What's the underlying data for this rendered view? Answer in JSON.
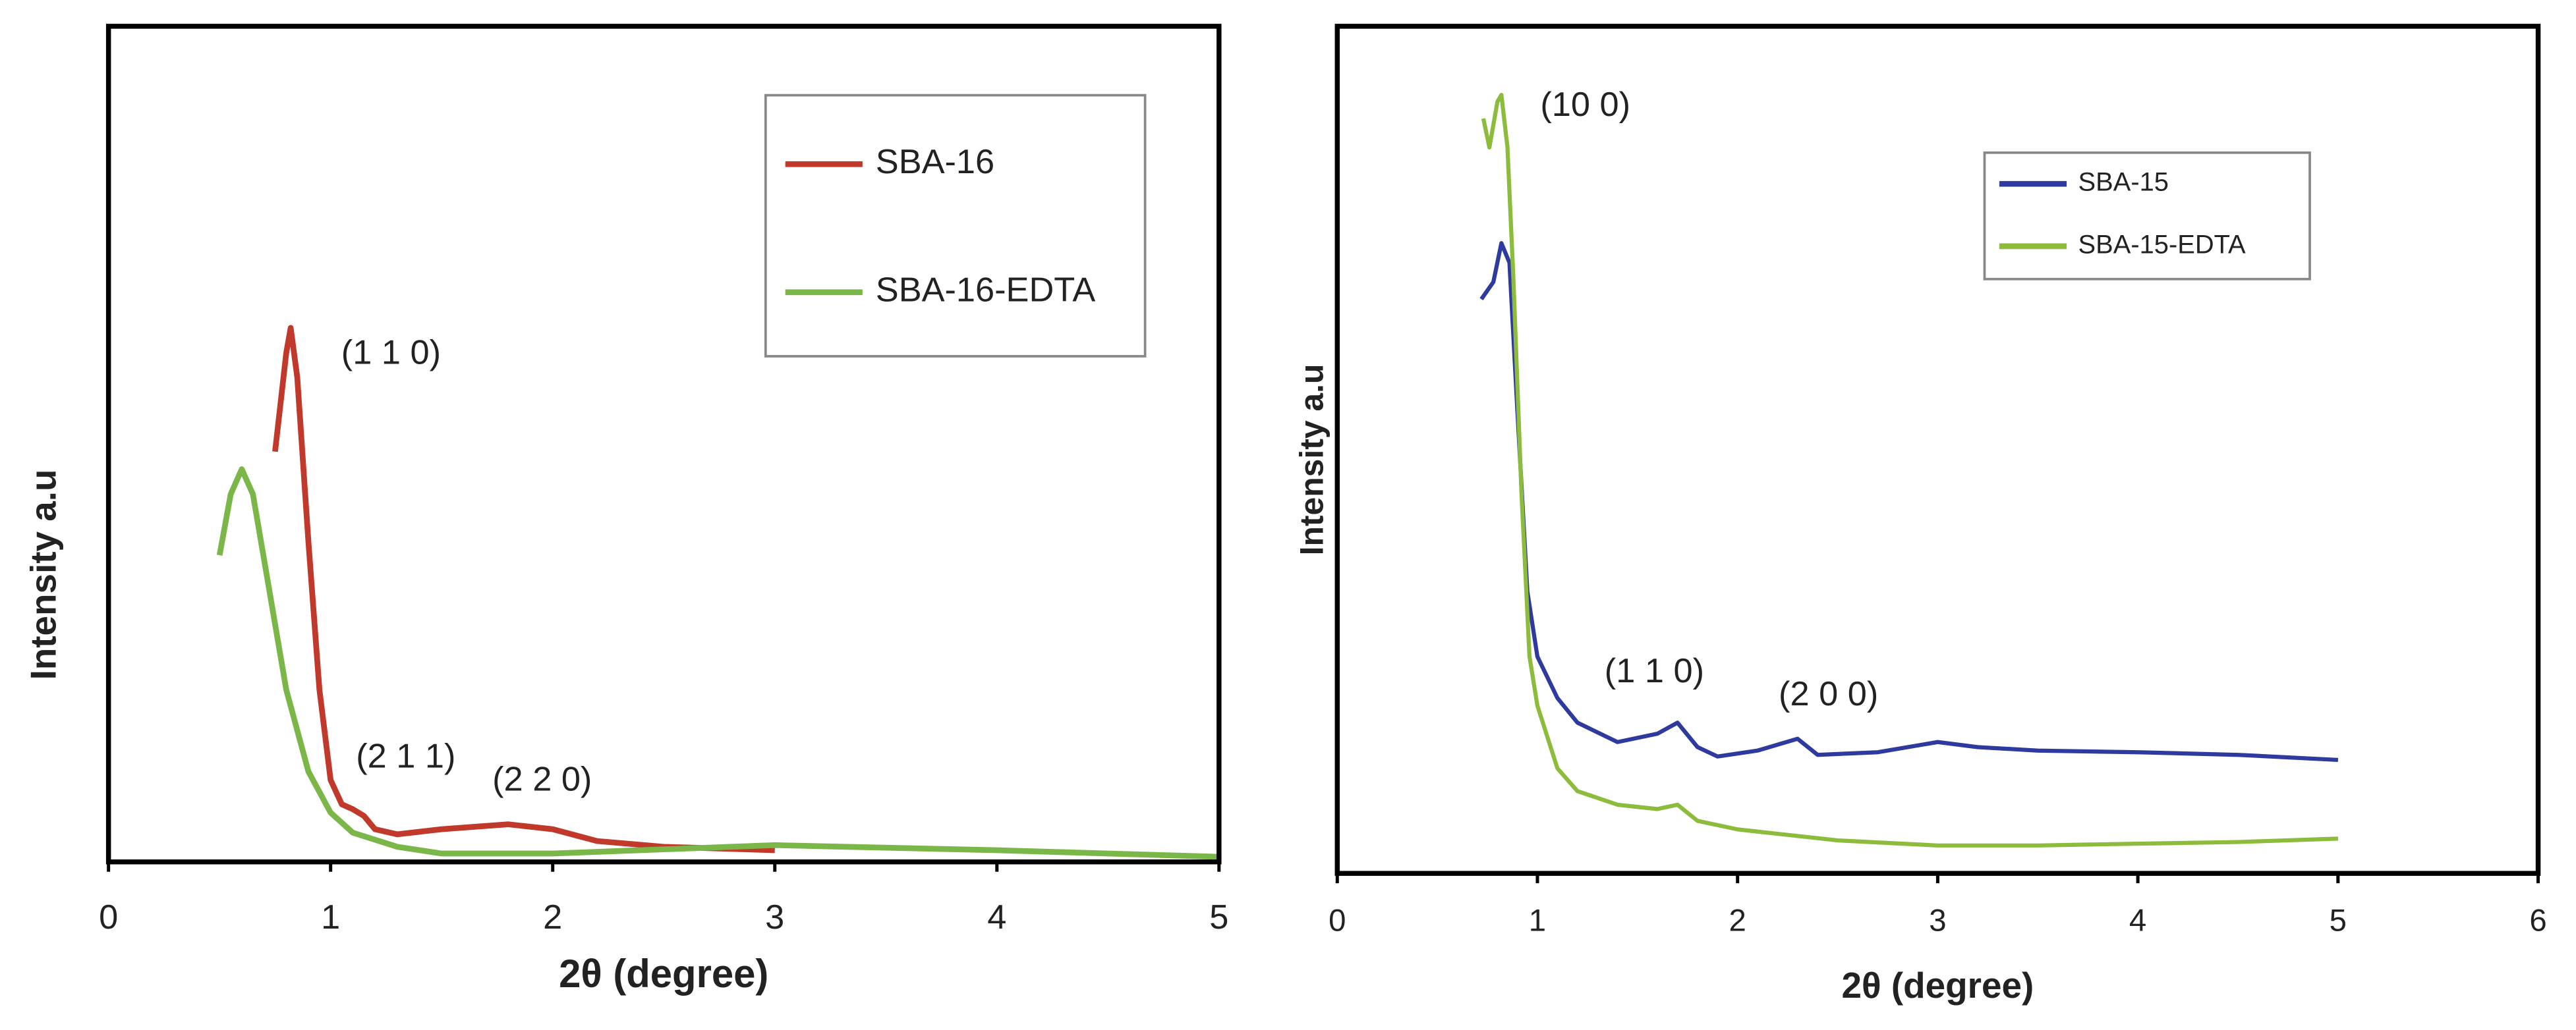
{
  "chart_data": [
    {
      "type": "line",
      "xlabel": "2θ (degree)",
      "ylabel": "Intensity a.u",
      "xlim": [
        0,
        5
      ],
      "xticks": [
        0,
        1,
        2,
        3,
        4,
        5
      ],
      "ylim": [
        0,
        100
      ],
      "legend": "upper right",
      "annotations": [
        "(1 1 0)",
        "(2 1 1)",
        "(2 2 0)"
      ],
      "series": [
        {
          "name": "SBA-16",
          "color": "#c0392b",
          "x": [
            0.75,
            0.8,
            0.82,
            0.85,
            0.9,
            0.95,
            1.0,
            1.05,
            1.1,
            1.15,
            1.2,
            1.3,
            1.5,
            1.8,
            2.0,
            2.2,
            2.5,
            3.0
          ],
          "values": [
            49.1,
            60.9,
            63.9,
            58.0,
            38.3,
            20.6,
            9.8,
            6.9,
            6.3,
            5.5,
            3.9,
            3.3,
            3.9,
            4.5,
            3.9,
            2.5,
            1.8,
            1.4
          ]
        },
        {
          "name": "SBA-16-EDTA",
          "color": "#7ab648",
          "x": [
            0.5,
            0.55,
            0.6,
            0.65,
            0.7,
            0.8,
            0.9,
            1.0,
            1.1,
            1.3,
            1.5,
            2,
            3,
            4,
            5
          ],
          "values": [
            36.7,
            44,
            47,
            44,
            36.3,
            20.6,
            10.8,
            5.9,
            3.5,
            1.8,
            1.0,
            1.0,
            2.0,
            1.4,
            0.6
          ]
        }
      ]
    },
    {
      "type": "line",
      "xlabel": "2θ (degree)",
      "ylabel": "Intensity a.u",
      "xlim": [
        0,
        6
      ],
      "xticks": [
        0,
        1,
        2,
        3,
        4,
        5,
        6
      ],
      "ylim": [
        0,
        100
      ],
      "legend": "upper right",
      "annotations": [
        "(10 0)",
        "(1 1 0)",
        "(2 0 0)"
      ],
      "series": [
        {
          "name": "SBA-15",
          "color": "#2e3a9e",
          "x": [
            0.72,
            0.78,
            0.82,
            0.86,
            0.9,
            0.95,
            1.0,
            1.1,
            1.2,
            1.4,
            1.6,
            1.7,
            1.8,
            1.9,
            2.1,
            2.3,
            2.4,
            2.7,
            3.0,
            3.2,
            3.5,
            4,
            4.5,
            5
          ],
          "values": [
            67.8,
            69.8,
            74.4,
            72.1,
            54.7,
            33.3,
            25.6,
            20.7,
            17.8,
            15.5,
            16.5,
            17.8,
            14.9,
            13.8,
            14.5,
            15.9,
            14.0,
            14.3,
            15.5,
            14.9,
            14.5,
            14.3,
            14.0,
            13.4
          ]
        },
        {
          "name": "SBA-15-EDTA",
          "color": "#8dbb3c",
          "x": [
            0.73,
            0.76,
            0.8,
            0.82,
            0.85,
            0.88,
            0.92,
            0.96,
            1.0,
            1.1,
            1.2,
            1.4,
            1.6,
            1.7,
            1.8,
            2,
            2.5,
            3,
            3.5,
            4,
            4.5,
            5
          ],
          "values": [
            89.1,
            85.7,
            91.1,
            91.9,
            85.7,
            70.2,
            45.0,
            25.6,
            19.8,
            12.4,
            9.7,
            8.1,
            7.6,
            8.1,
            6.2,
            5.2,
            3.9,
            3.3,
            3.3,
            3.5,
            3.7,
            4.1
          ]
        }
      ]
    }
  ]
}
